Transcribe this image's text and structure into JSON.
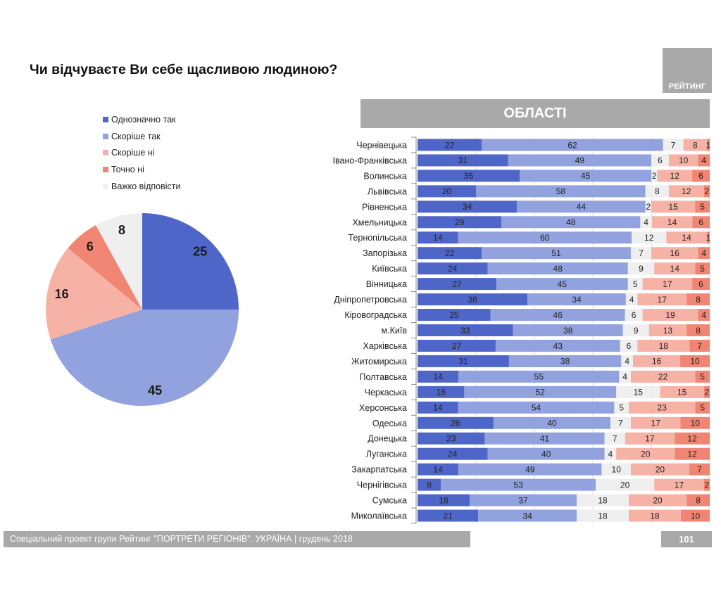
{
  "title": "Чи відчуваєте Ви себе щасливою людиною?",
  "logo": {
    "text": "РЕЙТИНГ"
  },
  "regions_header": "ОБЛАСТІ",
  "footer": {
    "text": "Спеціальний проект групи Рейтинг \"ПОРТРЕТИ РЕГІОНІВ\". УКРАЇНА | грудень 2018",
    "page_number": "101"
  },
  "colors": {
    "brand_gray": "#a9a9a9",
    "dark_label": "#1c2444"
  },
  "chart_data": [
    {
      "type": "pie",
      "title": "Чи відчуваєте Ви себе щасливою людиною?",
      "legend": [
        "Однозначно так",
        "Скоріше так",
        "Скоріше ні",
        "Точно ні",
        "Важко відповісти"
      ],
      "legend_position": "top",
      "start": "12 o'clock, clockwise",
      "slices": [
        {
          "label": "Однозначно так",
          "value": 25,
          "color": "#4f66c9"
        },
        {
          "label": "Скоріше так",
          "value": 45,
          "color": "#91a2df"
        },
        {
          "label": "Скоріше ні",
          "value": 16,
          "color": "#f7b2a6"
        },
        {
          "label": "Точно ні",
          "value": 6,
          "color": "#f08573"
        },
        {
          "label": "Важко відповісти",
          "value": 8,
          "color": "#efefef"
        }
      ]
    },
    {
      "type": "bar",
      "orientation": "horizontal",
      "stacked": "percent",
      "title": "ОБЛАСТІ",
      "xlabel": "",
      "ylabel": "",
      "xlim": [
        0,
        100
      ],
      "grid": true,
      "grid_step": 20,
      "categories": [
        "Чернівецька",
        "Івано-Франківська",
        "Волинська",
        "Львівська",
        "Рівненська",
        "Хмельницька",
        "Тернопільська",
        "Запорізька",
        "Київська",
        "Вінницька",
        "Дніпропетровська",
        "Кіровоградська",
        "м.Київ",
        "Харківська",
        "Житомирська",
        "Полтавська",
        "Черкаська",
        "Херсонська",
        "Одеська",
        "Донецька",
        "Луганська",
        "Закарпатська",
        "Чернігівська",
        "Сумська",
        "Миколаївська"
      ],
      "series": [
        {
          "name": "Однозначно так",
          "color": "#4f66c9",
          "values": [
            22,
            31,
            35,
            20,
            34,
            29,
            14,
            22,
            24,
            27,
            38,
            25,
            33,
            27,
            31,
            14,
            16,
            14,
            26,
            23,
            24,
            14,
            8,
            18,
            21
          ]
        },
        {
          "name": "Скоріше так",
          "color": "#91a2df",
          "values": [
            62,
            49,
            45,
            58,
            44,
            48,
            60,
            51,
            48,
            45,
            34,
            46,
            38,
            43,
            38,
            55,
            52,
            54,
            40,
            41,
            40,
            49,
            53,
            37,
            34
          ]
        },
        {
          "name": "Важко відповісти",
          "color": "#efefef",
          "values": [
            7,
            6,
            2,
            8,
            2,
            4,
            12,
            7,
            9,
            5,
            4,
            6,
            9,
            6,
            4,
            4,
            15,
            5,
            7,
            7,
            4,
            10,
            20,
            18,
            18
          ]
        },
        {
          "name": "Скоріше ні",
          "color": "#f7b2a6",
          "values": [
            8,
            10,
            12,
            12,
            15,
            14,
            14,
            16,
            14,
            17,
            17,
            19,
            13,
            18,
            16,
            22,
            15,
            23,
            17,
            17,
            20,
            20,
            17,
            20,
            18
          ]
        },
        {
          "name": "Точно ні",
          "color": "#f08573",
          "values": [
            1,
            4,
            6,
            2,
            5,
            6,
            1,
            4,
            5,
            6,
            8,
            4,
            8,
            7,
            10,
            5,
            2,
            5,
            10,
            12,
            12,
            7,
            2,
            8,
            10
          ]
        }
      ]
    }
  ]
}
